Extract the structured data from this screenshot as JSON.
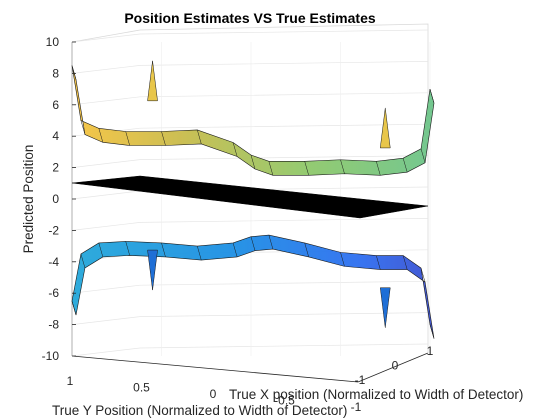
{
  "chart_data": {
    "type": "surface3d",
    "title": "Position Estimates VS True Estimates",
    "zlabel": "Predicted Position",
    "xlabel": "True X position (Normalized to Width of Detector)",
    "ylabel": "True Y Position (Normalized to Width of Detector)",
    "zlim": [
      -10,
      10
    ],
    "xlim": [
      -1,
      1
    ],
    "ylim": [
      -1,
      1
    ],
    "grid": true,
    "colormap": "parula",
    "z_ticks": [
      "10",
      "8",
      "6",
      "4",
      "2",
      "0",
      "-2",
      "-4",
      "-6",
      "-8",
      "-10"
    ],
    "x_ticks": [
      "1",
      "0.5",
      "0",
      "-0.5",
      "-1"
    ],
    "y_ticks": [
      "-1",
      "0",
      "1"
    ],
    "series": [
      {
        "x": [
          1.0,
          0.95,
          0.85,
          0.7,
          0.5,
          0.3,
          0.1,
          0.0,
          -0.1,
          -0.3,
          -0.5,
          -0.7,
          -0.85,
          -0.95,
          -1.0
        ],
        "z": [
          8.5,
          5.0,
          4.5,
          4.3,
          4.3,
          4.4,
          3.6,
          2.8,
          2.4,
          2.4,
          2.5,
          2.4,
          2.6,
          3.2,
          7.0
        ],
        "spikes": [
          {
            "x": 0.55,
            "z": 8.8
          },
          {
            "x": -0.75,
            "z": 5.8
          }
        ]
      },
      {
        "x": [
          1.0,
          0.95,
          0.85,
          0.7,
          0.5,
          0.3,
          0.1,
          0.0,
          -0.1,
          -0.3,
          -0.5,
          -0.7,
          -0.85,
          -0.95,
          -1.0
        ],
        "z": [
          -6.5,
          -3.5,
          -2.8,
          -2.7,
          -2.8,
          -3.0,
          -2.8,
          -2.4,
          -2.3,
          -2.8,
          -3.4,
          -3.6,
          -3.6,
          -4.4,
          -8.0
        ],
        "spikes": [
          {
            "x": 0.55,
            "z": -5.8
          },
          {
            "x": -0.75,
            "z": -8.2
          }
        ]
      }
    ],
    "plane_z": 0
  }
}
